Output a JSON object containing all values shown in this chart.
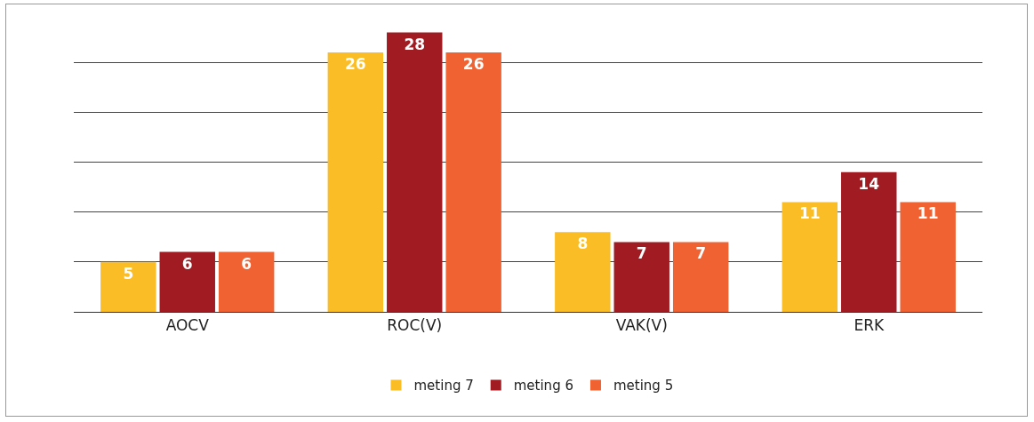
{
  "chart_data": {
    "type": "bar",
    "categories": [
      "AOCV",
      "ROC(V)",
      "VAK(V)",
      "ERK"
    ],
    "series": [
      {
        "name": "meting 7",
        "color": "#fbbd26",
        "values": [
          5,
          26,
          8,
          11
        ]
      },
      {
        "name": "meting 6",
        "color": "#a01c22",
        "values": [
          6,
          28,
          7,
          14
        ]
      },
      {
        "name": "meting 5",
        "color": "#f06232",
        "values": [
          6,
          26,
          7,
          11
        ]
      }
    ],
    "yticks": [
      {
        "value": 0,
        "label": null
      },
      {
        "value": 5,
        "label": null
      },
      {
        "value": 10,
        "label": null
      },
      {
        "value": 15,
        "label": null
      },
      {
        "value": 20,
        "label": null
      },
      {
        "value": 25,
        "label": null
      }
    ],
    "grid": "y",
    "legend": "bottom",
    "data_labels": true,
    "tick_labels": "x"
  }
}
